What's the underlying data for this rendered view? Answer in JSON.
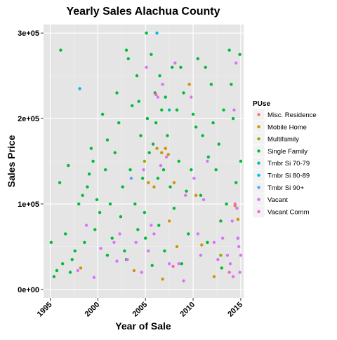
{
  "chart_data": {
    "type": "scatter",
    "title": "Yearly Sales Alachua County",
    "xlabel": "Year of Sale",
    "ylabel": "Sales Price",
    "xlim": [
      1994.3,
      2015.3
    ],
    "ylim": [
      -10000,
      310000
    ],
    "x_ticks": [
      1995,
      2000,
      2005,
      2010,
      2015
    ],
    "x_tick_labels": [
      "1995",
      "2000",
      "2005",
      "2010",
      "2015"
    ],
    "y_ticks": [
      0,
      100000,
      200000,
      300000
    ],
    "y_tick_labels": [
      "0e+00",
      "1e+05",
      "2e+05",
      "3e+05"
    ],
    "grid": true,
    "legend_position": "right",
    "legend_title": "PUse",
    "series": [
      {
        "name": "Misc. Residence",
        "color": "#F8766D",
        "points": []
      },
      {
        "name": "Mobile Home",
        "color": "#D39200",
        "points": [
          [
            1998.2,
            25000
          ],
          [
            2003.8,
            22000
          ],
          [
            2006.2,
            165000
          ],
          [
            2006.7,
            160000
          ],
          [
            2007.1,
            165000
          ],
          [
            2007.4,
            158000
          ],
          [
            2008.0,
            125000
          ],
          [
            2005.3,
            125000
          ],
          [
            2005.9,
            120000
          ],
          [
            2008.3,
            50000
          ],
          [
            2009.6,
            240000
          ],
          [
            2010.3,
            110000
          ],
          [
            2010.9,
            52000
          ],
          [
            2012.2,
            15000
          ],
          [
            2014.7,
            82000
          ],
          [
            2014.4,
            98000
          ],
          [
            2006.8,
            12000
          ],
          [
            2007.5,
            80000
          ]
        ]
      },
      {
        "name": "Multifamily",
        "color": "#93AA00",
        "points": [
          [
            2004.9,
            150000
          ],
          [
            2012.9,
            40000
          ]
        ]
      },
      {
        "name": "Single Family",
        "color": "#00BA38",
        "points": [
          [
            1995.1,
            55000
          ],
          [
            1995.4,
            15000
          ],
          [
            1995.7,
            22000
          ],
          [
            1996.0,
            125000
          ],
          [
            1996.1,
            280000
          ],
          [
            1996.3,
            30000
          ],
          [
            1996.6,
            65000
          ],
          [
            1996.9,
            145000
          ],
          [
            1997.1,
            20000
          ],
          [
            1997.3,
            35000
          ],
          [
            1997.6,
            45000
          ],
          [
            1998.0,
            100000
          ],
          [
            1998.4,
            110000
          ],
          [
            1998.6,
            55000
          ],
          [
            1998.9,
            120000
          ],
          [
            1999.1,
            135000
          ],
          [
            1999.3,
            165000
          ],
          [
            1999.5,
            150000
          ],
          [
            1999.7,
            70000
          ],
          [
            1999.9,
            105000
          ],
          [
            2000.2,
            90000
          ],
          [
            2000.5,
            205000
          ],
          [
            2000.8,
            140000
          ],
          [
            2001.0,
            175000
          ],
          [
            2001.3,
            100000
          ],
          [
            2001.5,
            60000
          ],
          [
            2001.8,
            160000
          ],
          [
            2002.0,
            230000
          ],
          [
            2002.2,
            195000
          ],
          [
            2002.4,
            85000
          ],
          [
            2002.6,
            120000
          ],
          [
            2002.8,
            45000
          ],
          [
            2003.0,
            280000
          ],
          [
            2003.2,
            270000
          ],
          [
            2003.4,
            140000
          ],
          [
            2003.6,
            215000
          ],
          [
            2003.9,
            100000
          ],
          [
            2004.1,
            250000
          ],
          [
            2004.3,
            220000
          ],
          [
            2004.5,
            180000
          ],
          [
            2004.7,
            130000
          ],
          [
            2004.9,
            90000
          ],
          [
            2005.0,
            60000
          ],
          [
            2005.1,
            300000
          ],
          [
            2005.2,
            200000
          ],
          [
            2005.4,
            160000
          ],
          [
            2005.6,
            275000
          ],
          [
            2005.8,
            170000
          ],
          [
            2006.0,
            230000
          ],
          [
            2006.1,
            195000
          ],
          [
            2006.3,
            130000
          ],
          [
            2006.5,
            250000
          ],
          [
            2006.7,
            210000
          ],
          [
            2006.9,
            140000
          ],
          [
            2007.1,
            225000
          ],
          [
            2007.3,
            180000
          ],
          [
            2007.6,
            120000
          ],
          [
            2007.8,
            260000
          ],
          [
            2008.0,
            95000
          ],
          [
            2008.3,
            210000
          ],
          [
            2008.5,
            150000
          ],
          [
            2008.7,
            260000
          ],
          [
            2009.0,
            230000
          ],
          [
            2009.3,
            115000
          ],
          [
            2009.5,
            65000
          ],
          [
            2009.8,
            140000
          ],
          [
            2010.0,
            205000
          ],
          [
            2010.3,
            190000
          ],
          [
            2010.5,
            270000
          ],
          [
            2010.8,
            110000
          ],
          [
            2011.0,
            180000
          ],
          [
            2011.3,
            260000
          ],
          [
            2011.6,
            155000
          ],
          [
            2011.9,
            240000
          ],
          [
            2012.1,
            195000
          ],
          [
            2012.4,
            140000
          ],
          [
            2012.7,
            170000
          ],
          [
            2012.9,
            80000
          ],
          [
            2013.2,
            210000
          ],
          [
            2013.5,
            100000
          ],
          [
            2013.8,
            280000
          ],
          [
            2014.0,
            240000
          ],
          [
            2014.2,
            200000
          ],
          [
            2014.5,
            125000
          ],
          [
            2014.7,
            60000
          ],
          [
            2014.9,
            275000
          ],
          [
            2015.0,
            150000
          ],
          [
            2001.0,
            40000
          ],
          [
            2003.0,
            35000
          ],
          [
            2006.4,
            75000
          ],
          [
            2007.0,
            45000
          ],
          [
            2008.8,
            30000
          ],
          [
            2011.5,
            55000
          ],
          [
            2013.0,
            25000
          ],
          [
            2005.7,
            28000
          ],
          [
            2004.2,
            70000
          ]
        ]
      },
      {
        "name": "Tmbr Si 70-79",
        "color": "#00C19F",
        "points": [
          [
            2007.5,
            210000
          ]
        ]
      },
      {
        "name": "Tmbr Si 80-89",
        "color": "#00B9E3",
        "points": [
          [
            1998.1,
            235000
          ],
          [
            2006.2,
            300000
          ]
        ]
      },
      {
        "name": "Tmbr Si 90+",
        "color": "#619CFF",
        "points": [
          [
            2003.5,
            130000
          ]
        ]
      },
      {
        "name": "Vacant",
        "color": "#DB72FB",
        "points": [
          [
            1997.9,
            22000
          ],
          [
            1998.8,
            75000
          ],
          [
            1999.6,
            14000
          ],
          [
            2000.3,
            48000
          ],
          [
            2001.7,
            55000
          ],
          [
            2002.3,
            65000
          ],
          [
            2003.1,
            35000
          ],
          [
            2004.0,
            55000
          ],
          [
            2004.6,
            20000
          ],
          [
            2004.8,
            140000
          ],
          [
            2005.1,
            260000
          ],
          [
            2005.3,
            45000
          ],
          [
            2005.6,
            75000
          ],
          [
            2005.9,
            65000
          ],
          [
            2006.3,
            225000
          ],
          [
            2006.6,
            145000
          ],
          [
            2006.8,
            240000
          ],
          [
            2007.2,
            155000
          ],
          [
            2007.5,
            30000
          ],
          [
            2008.1,
            265000
          ],
          [
            2008.5,
            30000
          ],
          [
            2009.0,
            10000
          ],
          [
            2009.2,
            110000
          ],
          [
            2009.8,
            225000
          ],
          [
            2010.1,
            130000
          ],
          [
            2010.5,
            65000
          ],
          [
            2010.8,
            40000
          ],
          [
            2011.1,
            105000
          ],
          [
            2011.5,
            150000
          ],
          [
            2012.2,
            55000
          ],
          [
            2012.6,
            35000
          ],
          [
            2013.1,
            60000
          ],
          [
            2013.6,
            40000
          ],
          [
            2013.9,
            30000
          ],
          [
            2014.1,
            80000
          ],
          [
            2014.3,
            210000
          ],
          [
            2014.5,
            265000
          ],
          [
            2014.6,
            95000
          ],
          [
            2014.7,
            60000
          ],
          [
            2014.8,
            50000
          ],
          [
            2014.9,
            20000
          ],
          [
            2015.0,
            40000
          ],
          [
            2014.2,
            15000
          ],
          [
            2002.0,
            33000
          ]
        ]
      },
      {
        "name": "Vacant Comm",
        "color": "#FF61C3",
        "points": [
          [
            2006.1,
            228000
          ],
          [
            2007.9,
            27000
          ],
          [
            2014.4,
            100000
          ],
          [
            2013.8,
            20000
          ]
        ]
      }
    ]
  }
}
